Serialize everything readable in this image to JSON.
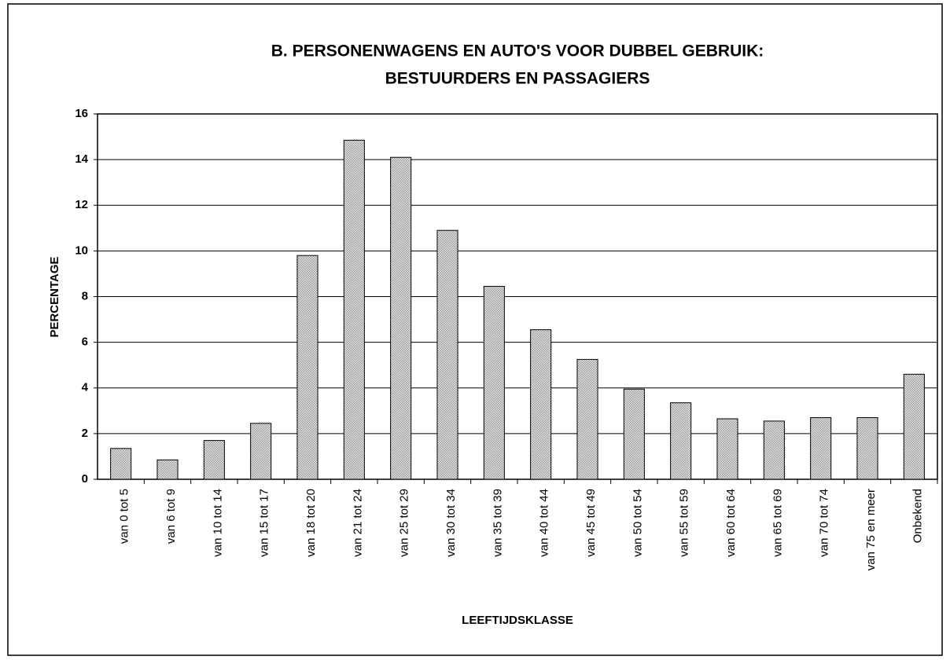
{
  "chart_data": {
    "type": "bar",
    "title": [
      "B. PERSONENWAGENS EN AUTO'S VOOR DUBBEL GEBRUIK:",
      "BESTUURDERS EN PASSAGIERS"
    ],
    "x_label": "LEEFTIJDSKLASSE",
    "y_label": "PERCENTAGE",
    "categories": [
      "van 0 tot 5",
      "van 6 tot 9",
      "van 10 tot 14",
      "van 15 tot 17",
      "van 18 tot 20",
      "van 21 tot 24",
      "van 25 tot 29",
      "van 30 tot 34",
      "van 35 tot 39",
      "van 40 tot 44",
      "van 45 tot 49",
      "van 50 tot 54",
      "van 55 tot 59",
      "van 60 tot 64",
      "van 65 tot 69",
      "van 70 tot 74",
      "van 75 en meer",
      "Onbekend"
    ],
    "values": [
      1.35,
      0.85,
      1.7,
      2.45,
      9.8,
      14.85,
      14.1,
      10.9,
      8.45,
      6.55,
      5.25,
      3.95,
      3.35,
      2.65,
      2.55,
      2.7,
      2.7,
      4.6
    ],
    "color": "#9a9a9a",
    "ylim": [
      0,
      16
    ],
    "yticks": [
      0,
      2,
      4,
      6,
      8,
      10,
      12,
      14,
      16
    ],
    "grid": true
  }
}
